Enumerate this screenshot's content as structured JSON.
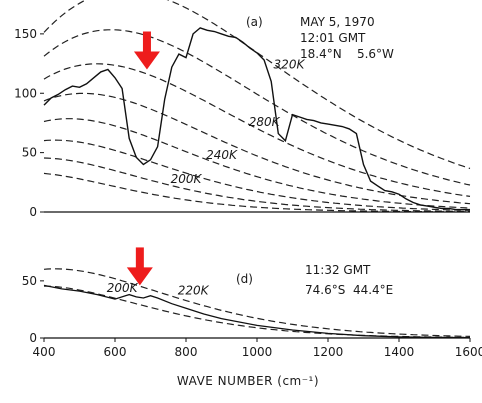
{
  "chart_data": [
    {
      "id": "a",
      "type": "line",
      "panel_label": "(a)",
      "annotation": [
        "MAY 5, 1970",
        "12:01 GMT",
        "18.4°N    5.6°W"
      ],
      "xlim": [
        400,
        1600
      ],
      "ylim": [
        0,
        160
      ],
      "y_ticks": [
        0,
        50,
        100,
        150
      ],
      "reference_curves": [
        {
          "label": "320K",
          "temperature": 320
        },
        {
          "label": "280K",
          "temperature": 280
        },
        {
          "label": "240K",
          "temperature": 240
        },
        {
          "label": "200K",
          "temperature": 200
        }
      ],
      "extra_reference_temperatures": [
        300,
        260,
        220,
        180
      ],
      "spectrum": {
        "x": [
          400,
          420,
          440,
          460,
          480,
          500,
          520,
          540,
          560,
          580,
          600,
          620,
          640,
          660,
          680,
          700,
          720,
          740,
          760,
          780,
          800,
          820,
          840,
          860,
          880,
          900,
          920,
          940,
          960,
          980,
          1000,
          1020,
          1040,
          1060,
          1080,
          1100,
          1120,
          1140,
          1160,
          1180,
          1200,
          1220,
          1240,
          1260,
          1280,
          1300,
          1320,
          1340,
          1360,
          1380,
          1400,
          1420,
          1440,
          1460,
          1480,
          1500,
          1520,
          1540,
          1560,
          1580,
          1600
        ],
        "y": [
          90,
          96,
          99,
          103,
          106,
          105,
          108,
          113,
          118,
          120,
          113,
          104,
          62,
          46,
          40,
          44,
          55,
          95,
          122,
          133,
          130,
          150,
          155,
          153,
          152,
          150,
          148,
          147,
          143,
          138,
          134,
          128,
          110,
          66,
          60,
          82,
          80,
          78,
          77,
          75,
          74,
          73,
          72,
          70,
          66,
          40,
          26,
          22,
          18,
          17,
          15,
          11,
          8,
          6,
          5,
          4,
          3,
          3,
          2,
          2,
          2
        ]
      },
      "arrow_at": {
        "x": 690,
        "y": 120
      }
    },
    {
      "id": "d",
      "type": "line",
      "panel_label": "(d)",
      "annotation": [
        "11:32 GMT",
        "74.6°S  44.4°E"
      ],
      "xlim": [
        400,
        1600
      ],
      "ylim": [
        0,
        70
      ],
      "y_ticks": [
        0,
        50
      ],
      "reference_curves": [
        {
          "label": "220K",
          "temperature": 220
        },
        {
          "label": "200K",
          "temperature": 200
        }
      ],
      "spectrum": {
        "x": [
          400,
          450,
          500,
          550,
          600,
          640,
          660,
          680,
          700,
          720,
          760,
          800,
          850,
          900,
          1000,
          1100,
          1200,
          1300,
          1400,
          1500,
          1600
        ],
        "y": [
          46,
          43,
          41,
          38,
          34,
          38,
          36,
          35,
          37,
          35,
          30,
          26,
          21,
          17,
          11,
          7,
          4,
          2,
          1,
          0.5,
          0.3
        ]
      },
      "arrow_at": {
        "x": 670,
        "y": 46
      },
      "x_ticks": [
        400,
        600,
        800,
        1000,
        1200,
        1400,
        1600
      ],
      "xlabel": "WAVE NUMBER (cm⁻¹)"
    }
  ]
}
